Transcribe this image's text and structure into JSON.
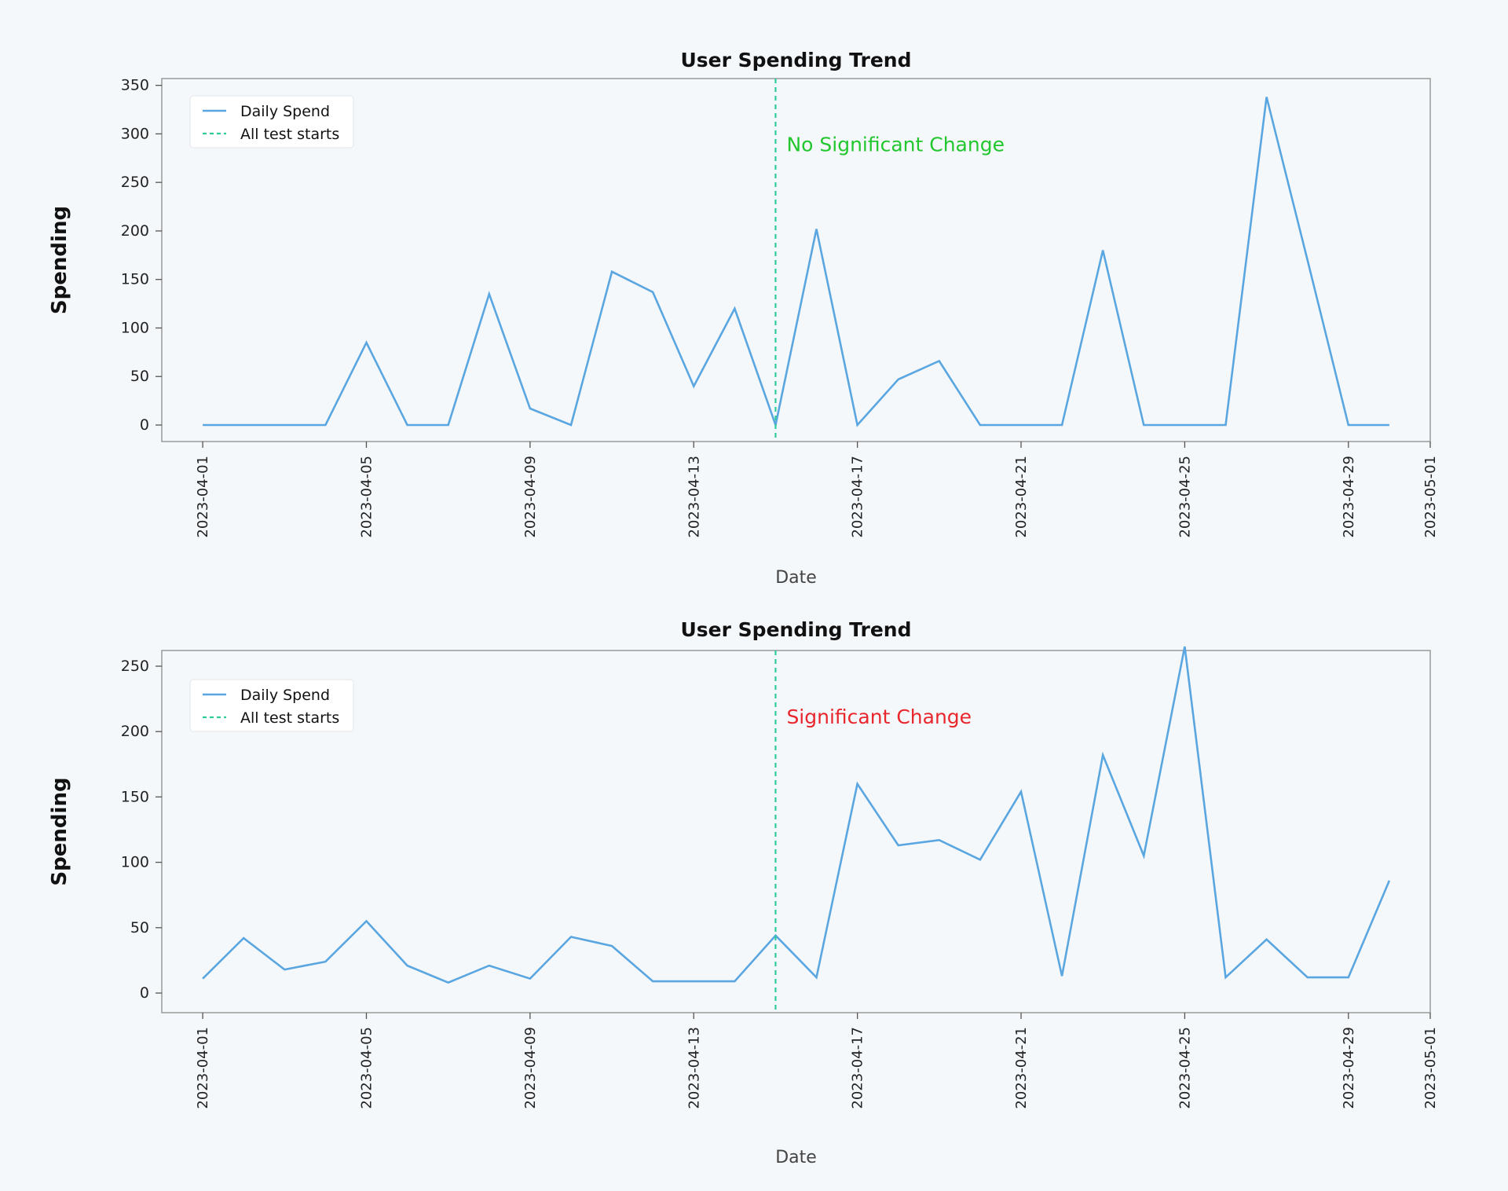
{
  "chart_data": [
    {
      "type": "line",
      "title": "User Spending Trend",
      "xlabel": "Date",
      "ylabel": "Spending",
      "xlim": [
        "2023-03-31",
        "2023-05-01"
      ],
      "ylim": [
        -17,
        357
      ],
      "y_ticks": [
        0,
        50,
        100,
        150,
        200,
        250,
        300,
        350
      ],
      "x_ticks": [
        "2023-04-01",
        "2023-04-05",
        "2023-04-09",
        "2023-04-13",
        "2023-04-17",
        "2023-04-21",
        "2023-04-25",
        "2023-04-29",
        "2023-05-01"
      ],
      "grid": false,
      "legend_position": "top-left",
      "series": [
        {
          "name": "Daily Spend",
          "color": "#5aa6e0",
          "x": [
            "2023-04-01",
            "2023-04-02",
            "2023-04-03",
            "2023-04-04",
            "2023-04-05",
            "2023-04-06",
            "2023-04-07",
            "2023-04-08",
            "2023-04-09",
            "2023-04-10",
            "2023-04-11",
            "2023-04-12",
            "2023-04-13",
            "2023-04-14",
            "2023-04-15",
            "2023-04-16",
            "2023-04-17",
            "2023-04-18",
            "2023-04-19",
            "2023-04-20",
            "2023-04-21",
            "2023-04-22",
            "2023-04-23",
            "2023-04-24",
            "2023-04-25",
            "2023-04-26",
            "2023-04-27",
            "2023-04-28",
            "2023-04-29",
            "2023-04-30"
          ],
          "values": [
            0,
            0,
            0,
            0,
            85,
            0,
            0,
            135,
            17,
            0,
            158,
            137,
            40,
            120,
            0,
            202,
            0,
            47,
            66,
            0,
            0,
            0,
            180,
            0,
            0,
            0,
            338,
            170,
            0,
            0
          ]
        }
      ],
      "vline": {
        "name": "All test starts",
        "x": "2023-04-15",
        "color": "#2ecc9a"
      },
      "annotation": {
        "text": "No Significant Change",
        "x": "2023-04-15",
        "y": 282,
        "color": "#22c72f"
      }
    },
    {
      "type": "line",
      "title": "User Spending Trend",
      "xlabel": "Date",
      "ylabel": "Spending",
      "xlim": [
        "2023-03-31",
        "2023-05-01"
      ],
      "ylim": [
        -15,
        262
      ],
      "y_ticks": [
        0,
        50,
        100,
        150,
        200,
        250
      ],
      "x_ticks": [
        "2023-04-01",
        "2023-04-05",
        "2023-04-09",
        "2023-04-13",
        "2023-04-17",
        "2023-04-21",
        "2023-04-25",
        "2023-04-29",
        "2023-05-01"
      ],
      "grid": false,
      "legend_position": "top-left",
      "series": [
        {
          "name": "Daily Spend",
          "color": "#5aa6e0",
          "x": [
            "2023-04-01",
            "2023-04-02",
            "2023-04-03",
            "2023-04-04",
            "2023-04-05",
            "2023-04-06",
            "2023-04-07",
            "2023-04-08",
            "2023-04-09",
            "2023-04-10",
            "2023-04-11",
            "2023-04-12",
            "2023-04-13",
            "2023-04-14",
            "2023-04-15",
            "2023-04-16",
            "2023-04-17",
            "2023-04-18",
            "2023-04-19",
            "2023-04-20",
            "2023-04-21",
            "2023-04-22",
            "2023-04-23",
            "2023-04-24",
            "2023-04-25",
            "2023-04-26",
            "2023-04-27",
            "2023-04-28",
            "2023-04-29",
            "2023-04-30"
          ],
          "values": [
            11,
            42,
            18,
            24,
            55,
            21,
            8,
            21,
            11,
            43,
            36,
            9,
            9,
            9,
            44,
            12,
            160,
            113,
            117,
            102,
            154,
            13,
            182,
            105,
            265,
            12,
            41,
            12,
            12,
            86
          ]
        }
      ],
      "vline": {
        "name": "All test starts",
        "x": "2023-04-15",
        "color": "#2ecc9a"
      },
      "annotation": {
        "text": "Significant Change",
        "x": "2023-04-15",
        "y": 206,
        "color": "#e8262c"
      }
    }
  ]
}
